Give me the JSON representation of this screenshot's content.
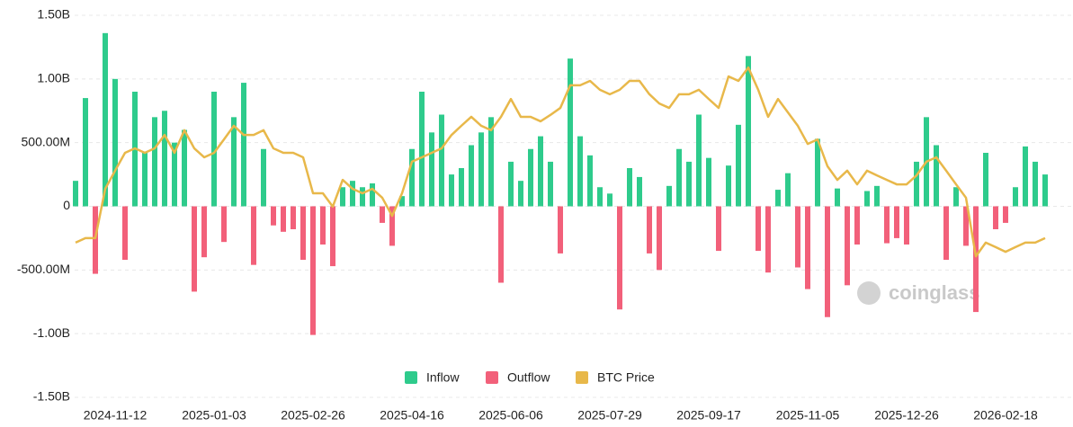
{
  "chart_data": {
    "type": "bar-line",
    "watermark": "coinglass",
    "categories": [
      null,
      null,
      null,
      null,
      "2024-11-12",
      null,
      null,
      null,
      null,
      null,
      null,
      null,
      null,
      null,
      "2025-01-03",
      null,
      null,
      null,
      null,
      null,
      null,
      null,
      null,
      null,
      "2025-02-26",
      null,
      null,
      null,
      null,
      null,
      null,
      null,
      null,
      null,
      "2025-04-16",
      null,
      null,
      null,
      null,
      null,
      null,
      null,
      null,
      null,
      "2025-06-06",
      null,
      null,
      null,
      null,
      null,
      null,
      null,
      null,
      null,
      "2025-07-29",
      null,
      null,
      null,
      null,
      null,
      null,
      null,
      null,
      null,
      "2025-09-17",
      null,
      null,
      null,
      null,
      null,
      null,
      null,
      null,
      null,
      "2025-11-05",
      null,
      null,
      null,
      null,
      null,
      null,
      null,
      null,
      null,
      "2025-12-26",
      null,
      null,
      null,
      null,
      null,
      null,
      null,
      null,
      null,
      "2026-02-18",
      null,
      null,
      null,
      null
    ],
    "series": [
      {
        "name": "Inflow",
        "color": "#2ecb8c",
        "values": [
          200000000,
          850000000,
          null,
          1360000000,
          1000000000,
          null,
          900000000,
          430000000,
          700000000,
          750000000,
          500000000,
          600000000,
          null,
          null,
          900000000,
          null,
          700000000,
          970000000,
          null,
          450000000,
          null,
          null,
          null,
          null,
          null,
          null,
          null,
          150000000,
          200000000,
          150000000,
          180000000,
          null,
          null,
          80000000,
          450000000,
          900000000,
          580000000,
          720000000,
          250000000,
          300000000,
          480000000,
          580000000,
          700000000,
          null,
          350000000,
          200000000,
          450000000,
          550000000,
          350000000,
          null,
          1160000000,
          550000000,
          400000000,
          150000000,
          100000000,
          null,
          300000000,
          230000000,
          null,
          null,
          160000000,
          450000000,
          350000000,
          720000000,
          380000000,
          null,
          320000000,
          640000000,
          1180000000,
          null,
          null,
          130000000,
          260000000,
          null,
          null,
          530000000,
          null,
          140000000,
          null,
          null,
          120000000,
          160000000,
          null,
          null,
          null,
          350000000,
          700000000,
          480000000,
          null,
          150000000,
          null,
          null,
          420000000,
          null,
          null,
          150000000,
          470000000,
          350000000,
          250000000
        ]
      },
      {
        "name": "Outflow",
        "color": "#f2607a",
        "values": [
          null,
          null,
          -530000000,
          null,
          null,
          -420000000,
          null,
          null,
          null,
          null,
          null,
          null,
          -670000000,
          -400000000,
          null,
          -280000000,
          null,
          null,
          -460000000,
          null,
          -150000000,
          -200000000,
          -180000000,
          -420000000,
          -1010000000,
          -300000000,
          -470000000,
          null,
          null,
          null,
          null,
          -130000000,
          -310000000,
          null,
          null,
          null,
          null,
          null,
          null,
          null,
          null,
          null,
          null,
          -600000000,
          null,
          null,
          null,
          null,
          null,
          -370000000,
          null,
          null,
          null,
          null,
          null,
          -810000000,
          null,
          null,
          -370000000,
          -500000000,
          null,
          null,
          null,
          null,
          null,
          -350000000,
          null,
          null,
          null,
          -350000000,
          -520000000,
          null,
          null,
          -480000000,
          -650000000,
          null,
          -870000000,
          null,
          -620000000,
          -300000000,
          null,
          null,
          -290000000,
          -250000000,
          -300000000,
          null,
          null,
          null,
          -420000000,
          null,
          -310000000,
          -830000000,
          null,
          -180000000,
          -130000000,
          null,
          null,
          null,
          null
        ]
      },
      {
        "name": "BTC Price",
        "color": "#e8b84a",
        "axis": "y2",
        "values": [
          68600,
          70000,
          70000,
          85500,
          91200,
          96800,
          98200,
          96800,
          98200,
          102400,
          96800,
          103900,
          98200,
          95400,
          96800,
          101000,
          105300,
          102400,
          102400,
          103900,
          98200,
          96800,
          96800,
          95400,
          84100,
          84100,
          79900,
          88300,
          85500,
          84100,
          85500,
          82700,
          77000,
          84100,
          94000,
          95400,
          96800,
          98200,
          102400,
          105300,
          108100,
          105300,
          103900,
          108100,
          113700,
          108100,
          108100,
          106700,
          108700,
          110900,
          118000,
          118000,
          119400,
          116600,
          115200,
          116600,
          119400,
          119400,
          115200,
          112300,
          110900,
          115200,
          115200,
          116600,
          113700,
          110900,
          120800,
          119400,
          123600,
          116600,
          108100,
          113700,
          109500,
          105300,
          99600,
          101000,
          92600,
          88300,
          91200,
          86900,
          91200,
          89700,
          88300,
          86900,
          86900,
          89700,
          94000,
          95400,
          91200,
          86900,
          82700,
          64300,
          68600,
          67200,
          65700,
          67200,
          68600,
          68600,
          70000
        ]
      }
    ],
    "ylim": [
      -1500000000,
      1500000000
    ],
    "yticks": [
      {
        "value": -1500000000,
        "label": "-1.50B"
      },
      {
        "value": -1000000000,
        "label": "-1.00B"
      },
      {
        "value": -500000000,
        "label": "-500.00M"
      },
      0,
      {
        "value": 500000000,
        "label": "500.00M"
      },
      {
        "value": 1000000000,
        "label": "1.00B"
      },
      {
        "value": 1500000000,
        "label": "1.50B"
      }
    ],
    "y2lim": [
      20000,
      140000
    ],
    "grid": true,
    "legend": "bottom"
  }
}
